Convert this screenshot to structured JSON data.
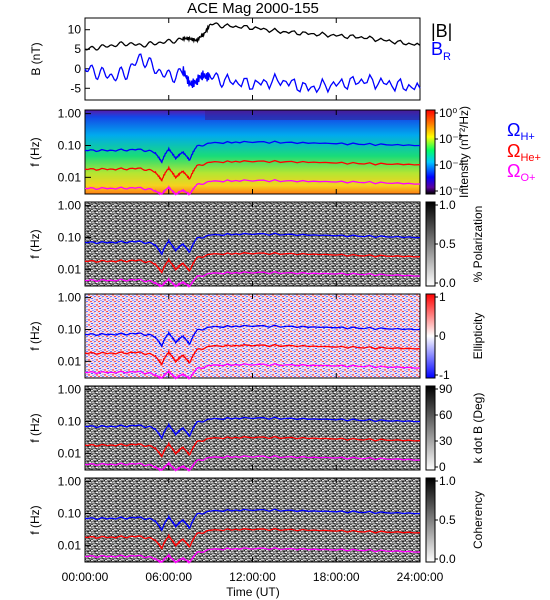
{
  "chart_data": {
    "type": "heatmap",
    "title": "ACE Mag 2000-155",
    "xlabel": "Time (UT)",
    "x_ticks": [
      "00:00:00",
      "06:00:00",
      "12:00:00",
      "18:00:00",
      "24:00:00"
    ],
    "xlim_hours": [
      0,
      24
    ],
    "top_panel": {
      "type": "line",
      "ylabel": "B (nT)",
      "y_ticks": [
        "10",
        "5",
        "0",
        "-5"
      ],
      "ylim": [
        -8,
        13
      ],
      "legend": [
        "|B|",
        "B_R"
      ],
      "colors": {
        "B_total": "#000000",
        "B_R": "#0000ff"
      },
      "series": [
        {
          "name": "|B|",
          "x": [
            0,
            1,
            2,
            3,
            4,
            5,
            6,
            7,
            7.5,
            8,
            8.5,
            9,
            10,
            12,
            14,
            16,
            18,
            20,
            22,
            24
          ],
          "y": [
            5,
            5.5,
            6,
            6.5,
            6,
            6.5,
            7,
            7.5,
            8,
            7,
            9,
            11.5,
            11,
            10.5,
            9.5,
            9,
            8.5,
            8,
            7,
            6
          ]
        },
        {
          "name": "B_R",
          "x": [
            0,
            1,
            2,
            3,
            4,
            5,
            6,
            7,
            7.5,
            8,
            8.5,
            9,
            10,
            12,
            14,
            16,
            18,
            20,
            22,
            24
          ],
          "y": [
            0,
            -1,
            -2,
            -1,
            3,
            0,
            -2,
            -1,
            -3,
            -4,
            -1,
            -2,
            -3,
            -4,
            -3,
            -5,
            -4,
            -3,
            -4,
            -5
          ]
        }
      ]
    },
    "freq_axis": {
      "ylabel": "f (Hz)",
      "y_ticks": [
        "1.00",
        "0.10",
        "0.01"
      ],
      "ylim": [
        0.003,
        1.3
      ],
      "scale": "log"
    },
    "gyrofrequency_lines": {
      "x": [
        0,
        2,
        4,
        5,
        5.5,
        6,
        6.5,
        7,
        7.5,
        8,
        9,
        12,
        16,
        20,
        24
      ],
      "H+": {
        "color": "#0000ff",
        "y": [
          0.07,
          0.07,
          0.075,
          0.06,
          0.03,
          0.075,
          0.04,
          0.06,
          0.035,
          0.09,
          0.12,
          0.13,
          0.12,
          0.11,
          0.1
        ]
      },
      "He+": {
        "color": "#ff0000",
        "y": [
          0.018,
          0.018,
          0.019,
          0.015,
          0.008,
          0.019,
          0.01,
          0.015,
          0.009,
          0.022,
          0.03,
          0.032,
          0.03,
          0.027,
          0.025
        ]
      },
      "O+": {
        "color": "#ff00ff",
        "y": [
          0.0045,
          0.0045,
          0.0047,
          0.0038,
          0.003,
          0.0047,
          0.003,
          0.0038,
          0.003,
          0.0056,
          0.0075,
          0.008,
          0.0075,
          0.007,
          0.0062
        ]
      }
    },
    "spectral_panels": [
      {
        "id": "intensity",
        "colorbar_label": "Intensity (nT²/Hz)",
        "colorbar_ticks": [
          "10⁰",
          "10⁻²",
          "10⁻⁴",
          "10⁻⁶"
        ],
        "colormap": "rainbow",
        "legend": [
          "Ω",
          "H+",
          "He+",
          "O+"
        ]
      },
      {
        "id": "polarization",
        "colorbar_label": "% Polarization",
        "colorbar_ticks": [
          "1.0",
          "0.5",
          "0.0"
        ],
        "colormap": "gray"
      },
      {
        "id": "ellipticity",
        "colorbar_label": "Ellipticity",
        "colorbar_ticks": [
          "1",
          "0",
          "-1"
        ],
        "colormap": "blue-white-red"
      },
      {
        "id": "kdotb",
        "colorbar_label": "k dot B (Deg)",
        "colorbar_ticks": [
          "90",
          "60",
          "30",
          "0"
        ],
        "colormap": "gray"
      },
      {
        "id": "coherency",
        "colorbar_label": "Coherency",
        "colorbar_ticks": [
          "1.0",
          "0.5",
          "0.0"
        ],
        "colormap": "gray"
      }
    ]
  }
}
